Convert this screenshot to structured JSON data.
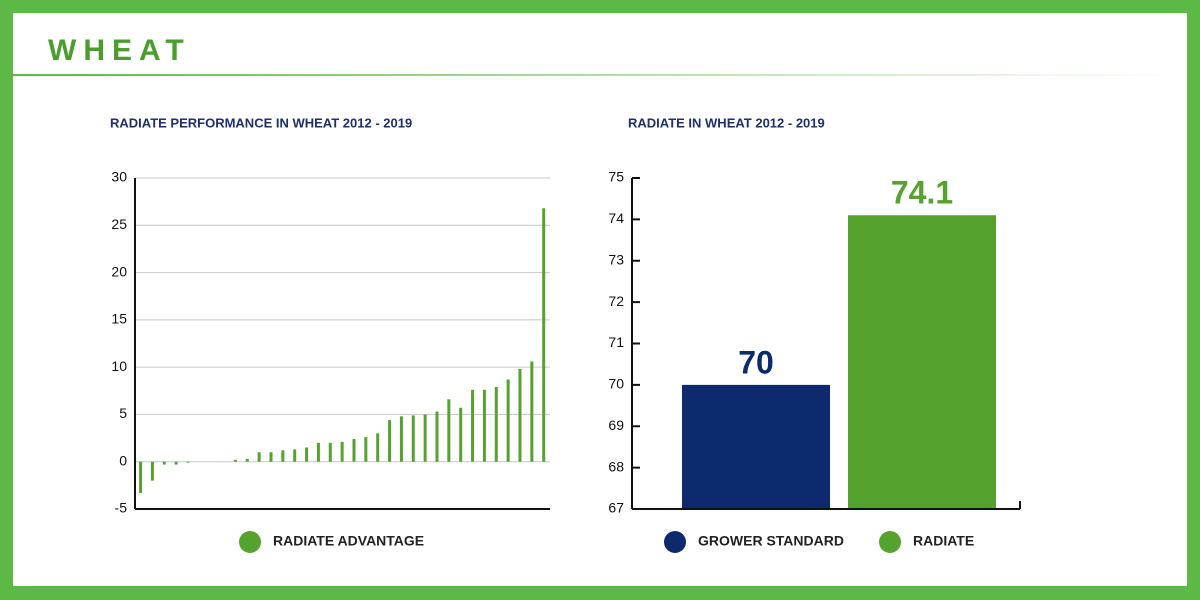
{
  "header": {
    "title": "WHEAT"
  },
  "chart_data": [
    {
      "type": "bar",
      "title": "RADIATE PERFORMANCE IN WHEAT 2012 - 2019",
      "categories": [
        null,
        null,
        null,
        null,
        null,
        null,
        null,
        null,
        null,
        null,
        null,
        null,
        null,
        null,
        null,
        null,
        null,
        null,
        null,
        null,
        null,
        null,
        null,
        null,
        null,
        null,
        null,
        null,
        null,
        null,
        null,
        null,
        null,
        null,
        null
      ],
      "series": [
        {
          "name": "RADIATE ADVANTAGE",
          "color": "#55a22f",
          "values": [
            -3.3,
            -2.0,
            -0.3,
            -0.3,
            -0.1,
            0,
            0,
            0,
            0.2,
            0.3,
            1.0,
            1.0,
            1.2,
            1.3,
            1.5,
            2.0,
            2.0,
            2.1,
            2.4,
            2.6,
            3.0,
            4.4,
            4.8,
            4.9,
            5.0,
            5.3,
            6.6,
            5.7,
            7.6,
            7.6,
            7.9,
            8.7,
            9.8,
            10.6,
            26.8
          ]
        }
      ],
      "ylim": [
        -5,
        30
      ],
      "yticks": [
        -5,
        0,
        5,
        10,
        15,
        20,
        25,
        30
      ],
      "grid": true
    },
    {
      "type": "bar",
      "title": "RADIATE IN WHEAT 2012 - 2019",
      "categories": [
        "GROWER STANDARD",
        "RADIATE"
      ],
      "values": [
        70,
        74.1
      ],
      "colors": [
        "#0e2a6e",
        "#55a22f"
      ],
      "ylim": [
        67,
        75
      ],
      "yticks": [
        67,
        68,
        69,
        70,
        71,
        72,
        73,
        74,
        75
      ],
      "grid": false
    }
  ]
}
